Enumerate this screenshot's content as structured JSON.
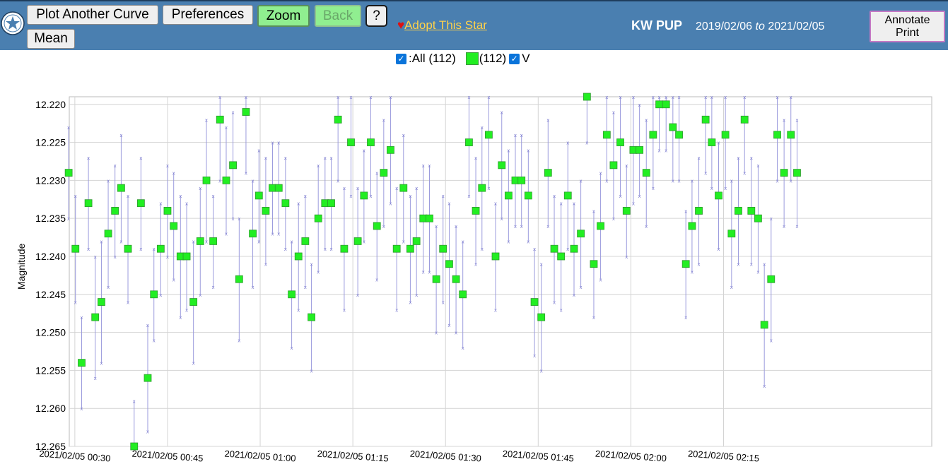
{
  "toolbar": {
    "plot_another": "Plot Another Curve",
    "preferences": "Preferences",
    "zoom": "Zoom",
    "back": "Back",
    "help": "?",
    "mean": "Mean",
    "adopt": "Adopt This Star",
    "annotate_line1": "Annotate",
    "annotate_line2": "Print"
  },
  "header": {
    "star": "KW PUP",
    "date_from": "2019/02/06",
    "date_to_word": "to",
    "date_to": "2021/02/05"
  },
  "legend": {
    "all_label": ":All (112)",
    "series_count": "(112)",
    "band": "V"
  },
  "colors": {
    "bar": "#4a7fb0",
    "point": "#22ee22",
    "error": "#9b9bdd"
  },
  "chart_data": {
    "type": "scatter",
    "ylabel": "Magnitude",
    "y_inverted": true,
    "ylim": [
      12.265,
      12.219
    ],
    "yticks": [
      12.22,
      12.225,
      12.23,
      12.235,
      12.24,
      12.245,
      12.25,
      12.255,
      12.26,
      12.265
    ],
    "ytick_labels": [
      "12.220",
      "12.225",
      "12.230",
      "12.235",
      "12.240",
      "12.245",
      "12.250",
      "12.255",
      "12.260",
      "12.265"
    ],
    "xlim": [
      29.1,
      168.7
    ],
    "xticks": [
      30,
      45,
      60,
      75,
      90,
      105,
      120,
      135
    ],
    "xtick_labels": [
      "2021/02/05 00:30",
      "2021/02/05 00:45",
      "2021/02/05 01:00",
      "2021/02/05 01:15",
      "2021/02/05 01:30",
      "2021/02/05 01:45",
      "2021/02/05 02:00",
      "2021/02/05 02:15"
    ],
    "series": [
      {
        "name": "V",
        "x": [
          29.0,
          30.1,
          31.1,
          32.2,
          33.3,
          34.3,
          35.4,
          36.5,
          37.5,
          38.6,
          39.6,
          40.7,
          41.8,
          42.8,
          43.9,
          45.0,
          46.0,
          47.1,
          48.1,
          49.2,
          50.3,
          51.3,
          52.4,
          53.5,
          54.5,
          55.6,
          56.6,
          57.7,
          58.8,
          59.8,
          60.9,
          62.0,
          63.0,
          64.1,
          65.1,
          66.2,
          67.3,
          68.3,
          69.4,
          70.5,
          71.5,
          72.6,
          73.6,
          74.7,
          75.8,
          76.8,
          77.9,
          78.9,
          80.0,
          81.1,
          82.1,
          83.2,
          84.3,
          85.3,
          86.4,
          87.4,
          88.5,
          89.6,
          90.6,
          91.7,
          92.8,
          93.8,
          94.9,
          95.9,
          97.0,
          98.1,
          99.1,
          100.2,
          101.3,
          102.3,
          103.4,
          104.4,
          105.5,
          106.6,
          107.6,
          108.7,
          109.8,
          110.8,
          111.9,
          112.9,
          114.0,
          115.1,
          116.1,
          117.2,
          118.3,
          119.3,
          120.4,
          121.4,
          122.5,
          123.6,
          124.6,
          125.7,
          126.8,
          127.8,
          128.9,
          129.9,
          131.0,
          132.1,
          133.1,
          134.2,
          135.3,
          136.3,
          137.4,
          138.4,
          139.5,
          140.6,
          141.6,
          142.7,
          143.7,
          144.8,
          145.9,
          146.9
        ],
        "y": [
          12.229,
          12.239,
          12.254,
          12.233,
          12.248,
          12.246,
          12.237,
          12.234,
          12.231,
          12.239,
          12.265,
          12.233,
          12.256,
          12.245,
          12.239,
          12.234,
          12.236,
          12.24,
          12.24,
          12.246,
          12.238,
          12.23,
          12.238,
          12.222,
          12.23,
          12.228,
          12.243,
          12.221,
          12.237,
          12.232,
          12.234,
          12.231,
          12.231,
          12.233,
          12.245,
          12.24,
          12.238,
          12.248,
          12.235,
          12.233,
          12.233,
          12.222,
          12.239,
          12.225,
          12.238,
          12.232,
          12.225,
          12.236,
          12.229,
          12.226,
          12.239,
          12.231,
          12.239,
          12.238,
          12.235,
          12.235,
          12.243,
          12.239,
          12.241,
          12.243,
          12.245,
          12.225,
          12.234,
          12.231,
          12.224,
          12.24,
          12.228,
          12.232,
          12.23,
          12.23,
          12.232,
          12.246,
          12.248,
          12.229,
          12.239,
          12.24,
          12.232,
          12.239,
          12.237,
          12.219,
          12.241,
          12.236,
          12.224,
          12.228,
          12.225,
          12.234,
          12.226,
          12.226,
          12.229,
          12.224,
          12.22,
          12.22,
          12.223,
          12.224,
          12.241,
          12.236,
          12.234,
          12.222,
          12.225,
          12.232,
          12.224,
          12.237,
          12.234,
          12.222,
          12.234,
          12.235,
          12.249,
          12.243,
          12.224,
          12.229,
          12.224,
          12.229
        ],
        "err_hi": [
          12.223,
          12.232,
          12.248,
          12.227,
          12.24,
          12.238,
          12.23,
          12.228,
          12.224,
          12.232,
          12.259,
          12.227,
          12.249,
          12.239,
          12.233,
          12.228,
          12.229,
          12.232,
          12.233,
          12.238,
          12.231,
          12.222,
          12.232,
          12.214,
          12.223,
          12.221,
          12.235,
          12.213,
          12.23,
          12.226,
          12.227,
          12.225,
          12.225,
          12.227,
          12.238,
          12.233,
          12.232,
          12.241,
          12.228,
          12.227,
          12.227,
          12.214,
          12.231,
          12.218,
          12.231,
          12.226,
          12.218,
          12.229,
          12.222,
          12.219,
          12.231,
          12.224,
          12.232,
          12.231,
          12.228,
          12.228,
          12.236,
          12.232,
          12.233,
          12.236,
          12.238,
          12.218,
          12.227,
          12.223,
          12.217,
          12.233,
          12.221,
          12.226,
          12.224,
          12.224,
          12.226,
          12.239,
          12.241,
          12.222,
          12.232,
          12.233,
          12.225,
          12.233,
          12.23,
          12.213,
          12.234,
          12.229,
          12.218,
          12.221,
          12.218,
          12.228,
          12.219,
          12.22,
          12.222,
          12.217,
          12.214,
          12.214,
          12.216,
          12.218,
          12.234,
          12.23,
          12.227,
          12.215,
          12.219,
          12.225,
          12.217,
          12.23,
          12.227,
          12.215,
          12.227,
          12.228,
          12.241,
          12.235,
          12.218,
          12.222,
          12.218,
          12.222
        ],
        "err_lo": [
          12.235,
          12.246,
          12.26,
          12.239,
          12.256,
          12.254,
          12.244,
          12.24,
          12.238,
          12.246,
          12.271,
          12.239,
          12.263,
          12.251,
          12.245,
          12.24,
          12.243,
          12.248,
          12.247,
          12.254,
          12.245,
          12.238,
          12.244,
          12.23,
          12.237,
          12.235,
          12.251,
          12.229,
          12.244,
          12.238,
          12.241,
          12.237,
          12.237,
          12.239,
          12.252,
          12.247,
          12.244,
          12.255,
          12.242,
          12.239,
          12.239,
          12.23,
          12.247,
          12.232,
          12.245,
          12.238,
          12.232,
          12.243,
          12.236,
          12.233,
          12.247,
          12.238,
          12.246,
          12.245,
          12.242,
          12.242,
          12.25,
          12.246,
          12.249,
          12.25,
          12.252,
          12.232,
          12.241,
          12.239,
          12.231,
          12.247,
          12.235,
          12.238,
          12.236,
          12.236,
          12.238,
          12.253,
          12.255,
          12.236,
          12.246,
          12.247,
          12.239,
          12.245,
          12.244,
          12.225,
          12.248,
          12.243,
          12.23,
          12.235,
          12.232,
          12.24,
          12.233,
          12.232,
          12.236,
          12.231,
          12.226,
          12.226,
          12.23,
          12.23,
          12.248,
          12.242,
          12.241,
          12.229,
          12.231,
          12.239,
          12.231,
          12.244,
          12.241,
          12.229,
          12.241,
          12.242,
          12.257,
          12.251,
          12.23,
          12.236,
          12.23,
          12.236
        ]
      }
    ]
  }
}
